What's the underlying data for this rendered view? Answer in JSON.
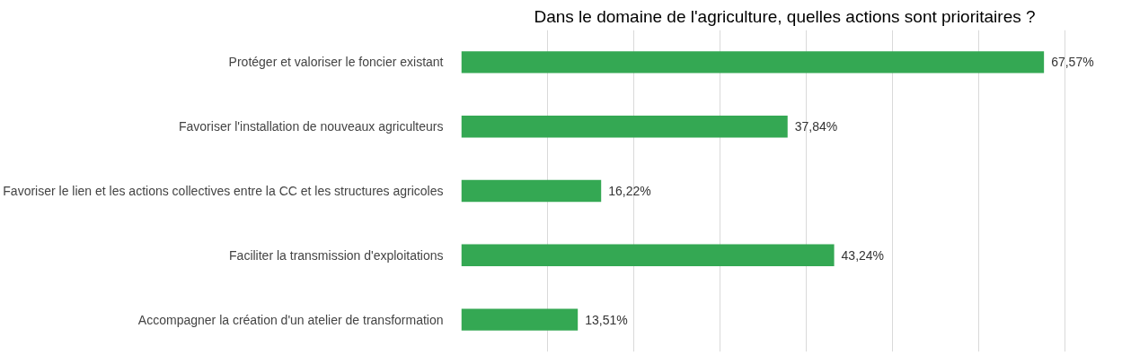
{
  "chart_data": {
    "type": "bar",
    "orientation": "horizontal",
    "title": "Dans le domaine de l'agriculture, quelles actions sont prioritaires ?",
    "categories": [
      "Protéger et valoriser le foncier existant",
      "Favoriser l'installation de nouveaux agriculteurs",
      "Favoriser le lien et les actions collectives entre la CC et les structures agricoles",
      "Faciliter la transmission d'exploitations",
      "Accompagner la création d'un atelier de transformation"
    ],
    "values": [
      67.57,
      37.84,
      16.22,
      43.24,
      13.51
    ],
    "value_labels": [
      "67,57%",
      "37,84%",
      "16,22%",
      "43,24%",
      "13,51%"
    ],
    "color": "#34a853",
    "grid": "x",
    "tick_labels": "y"
  }
}
